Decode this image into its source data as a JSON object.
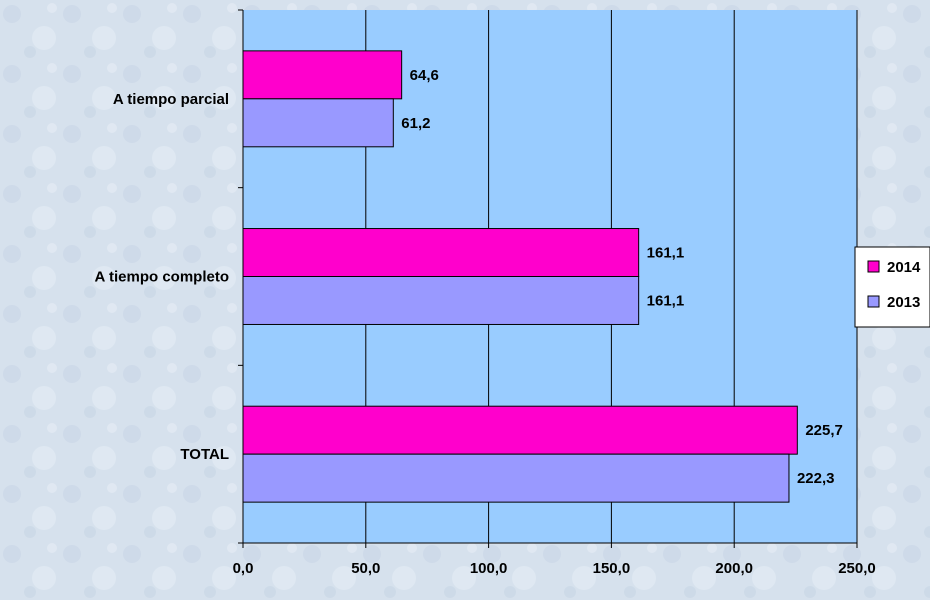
{
  "chart_data": {
    "type": "bar",
    "orientation": "horizontal",
    "categories": [
      "A tiempo parcial",
      "A tiempo completo",
      "TOTAL"
    ],
    "series": [
      {
        "name": "2014",
        "values": [
          64.6,
          161.1,
          225.7
        ],
        "labels": [
          "64,6",
          "161,1",
          "225,7"
        ],
        "color": "#ff00cc"
      },
      {
        "name": "2013",
        "values": [
          61.2,
          161.1,
          222.3
        ],
        "labels": [
          "61,2",
          "161,1",
          "222,3"
        ],
        "color": "#9999ff"
      }
    ],
    "xlim": [
      0,
      250
    ],
    "xticks": [
      0,
      50,
      100,
      150,
      200,
      250
    ],
    "xtick_labels": [
      "0,0",
      "50,0",
      "100,0",
      "150,0",
      "200,0",
      "250,0"
    ],
    "grid": true,
    "legend": "right",
    "plot_background": "#99ccff",
    "title": "",
    "xlabel": "",
    "ylabel": ""
  }
}
